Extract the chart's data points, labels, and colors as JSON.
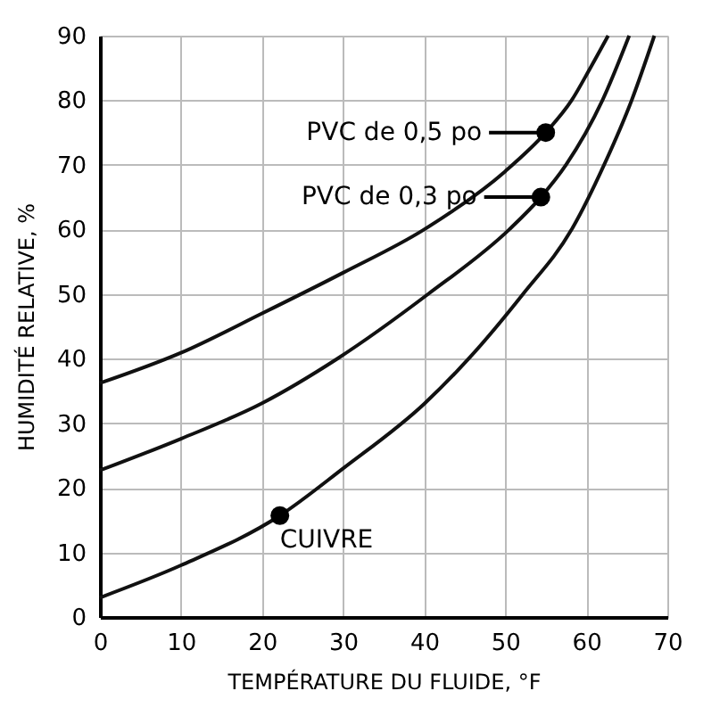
{
  "chart_data": {
    "type": "line",
    "xlabel": "TEMPÉRATURE DU FLUIDE, °F",
    "ylabel": "HUMIDITÉ RELATIVE, %",
    "xlim": [
      0,
      70
    ],
    "ylim": [
      0,
      90
    ],
    "xticks": [
      0,
      10,
      20,
      30,
      40,
      50,
      60,
      70
    ],
    "yticks": [
      0,
      10,
      20,
      30,
      40,
      50,
      60,
      70,
      80,
      90
    ],
    "grid": true,
    "line_style": "solid",
    "marker": "none",
    "series": [
      {
        "color": "#111111",
        "x": [
          0,
          10,
          20,
          30,
          40,
          50,
          55,
          58.2,
          60.5,
          62.7
        ],
        "values": [
          36.2,
          40.9,
          47,
          53.3,
          60,
          69,
          75,
          80,
          85,
          90
        ]
      },
      {
        "color": "#111111",
        "x": [
          0,
          10,
          20,
          29.3,
          40.5,
          50.5,
          54.4,
          57.5,
          62,
          65.3
        ],
        "values": [
          22.7,
          27.6,
          33.1,
          40,
          50,
          60,
          65,
          70,
          80,
          90
        ]
      },
      {
        "color": "#111111",
        "x": [
          0,
          10,
          22.2,
          30,
          40,
          45.5,
          52.2,
          58.2,
          62.2,
          65.6,
          68.4
        ],
        "values": [
          3,
          8,
          15.7,
          23,
          33,
          40,
          50,
          60,
          70,
          80,
          90
        ]
      }
    ],
    "annotations": [
      {
        "text": "PVC de 0,5 po",
        "x": 55,
        "y": 75
      },
      {
        "text": "PVC de 0,3 po",
        "x": 54.4,
        "y": 65
      },
      {
        "text": "CUIVRE",
        "x": 22.2,
        "y": 15.7
      }
    ]
  }
}
